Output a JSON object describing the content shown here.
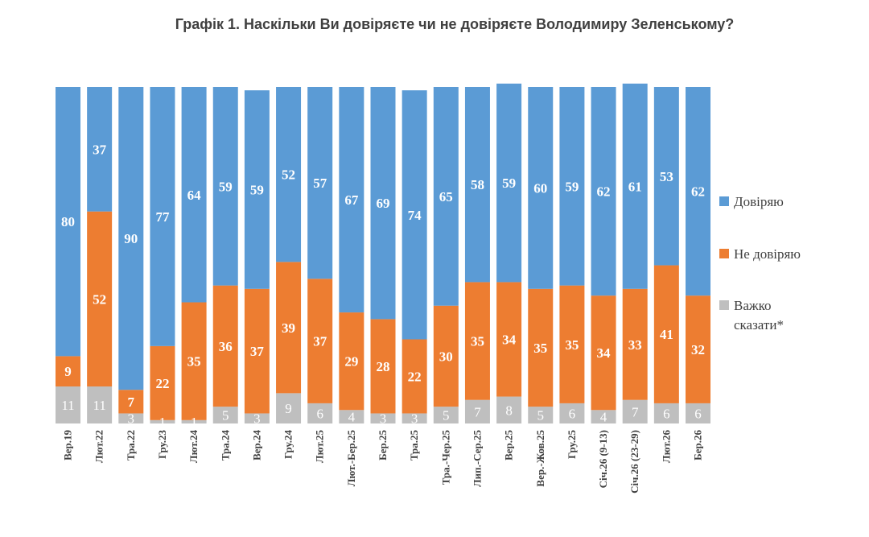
{
  "chart_data": {
    "type": "bar",
    "stacked": true,
    "title": "Графік 1. Наскільки Ви довіряєте чи не довіряєте Володимиру Зеленському?",
    "categories": [
      "Вер.19",
      "Лют.22",
      "Тра.22",
      "Гру.23",
      "Лют.24",
      "Тра.24",
      "Вер.24",
      "Гру.24",
      "Лют.25",
      "Лют.-Бер.25",
      "Бер.25",
      "Тра.25",
      "Тра.-Чер.25",
      "Лип.-Сер.25",
      "Вер.25",
      "Вер.-Жов.25",
      "Гру.25",
      "Січ.26 (9-13)",
      "Січ.26 (23-29)",
      "Лют.26",
      "Бер.26"
    ],
    "series": [
      {
        "name": "Важко сказати*",
        "color": "#bfbfbf",
        "values": [
          11,
          11,
          3,
          1,
          1,
          5,
          3,
          9,
          6,
          4,
          3,
          3,
          5,
          7,
          8,
          5,
          6,
          4,
          7,
          6,
          6
        ]
      },
      {
        "name": "Не довіряю",
        "color": "#ed7d31",
        "values": [
          9,
          52,
          7,
          22,
          35,
          36,
          37,
          39,
          37,
          29,
          28,
          22,
          30,
          35,
          34,
          35,
          35,
          34,
          33,
          41,
          32
        ]
      },
      {
        "name": "Довіряю",
        "color": "#5b9bd5",
        "values": [
          80,
          37,
          90,
          77,
          64,
          59,
          59,
          52,
          57,
          67,
          69,
          74,
          65,
          58,
          59,
          60,
          59,
          62,
          61,
          53,
          62
        ]
      }
    ],
    "ylim": [
      0,
      100
    ],
    "legend": {
      "position": "right",
      "items": [
        {
          "label": "Довіряю",
          "color": "#5b9bd5"
        },
        {
          "label": "Не довіряю",
          "color": "#ed7d31"
        },
        {
          "label_lines": [
            "Важко",
            "сказати*"
          ],
          "color": "#bfbfbf"
        }
      ]
    }
  }
}
